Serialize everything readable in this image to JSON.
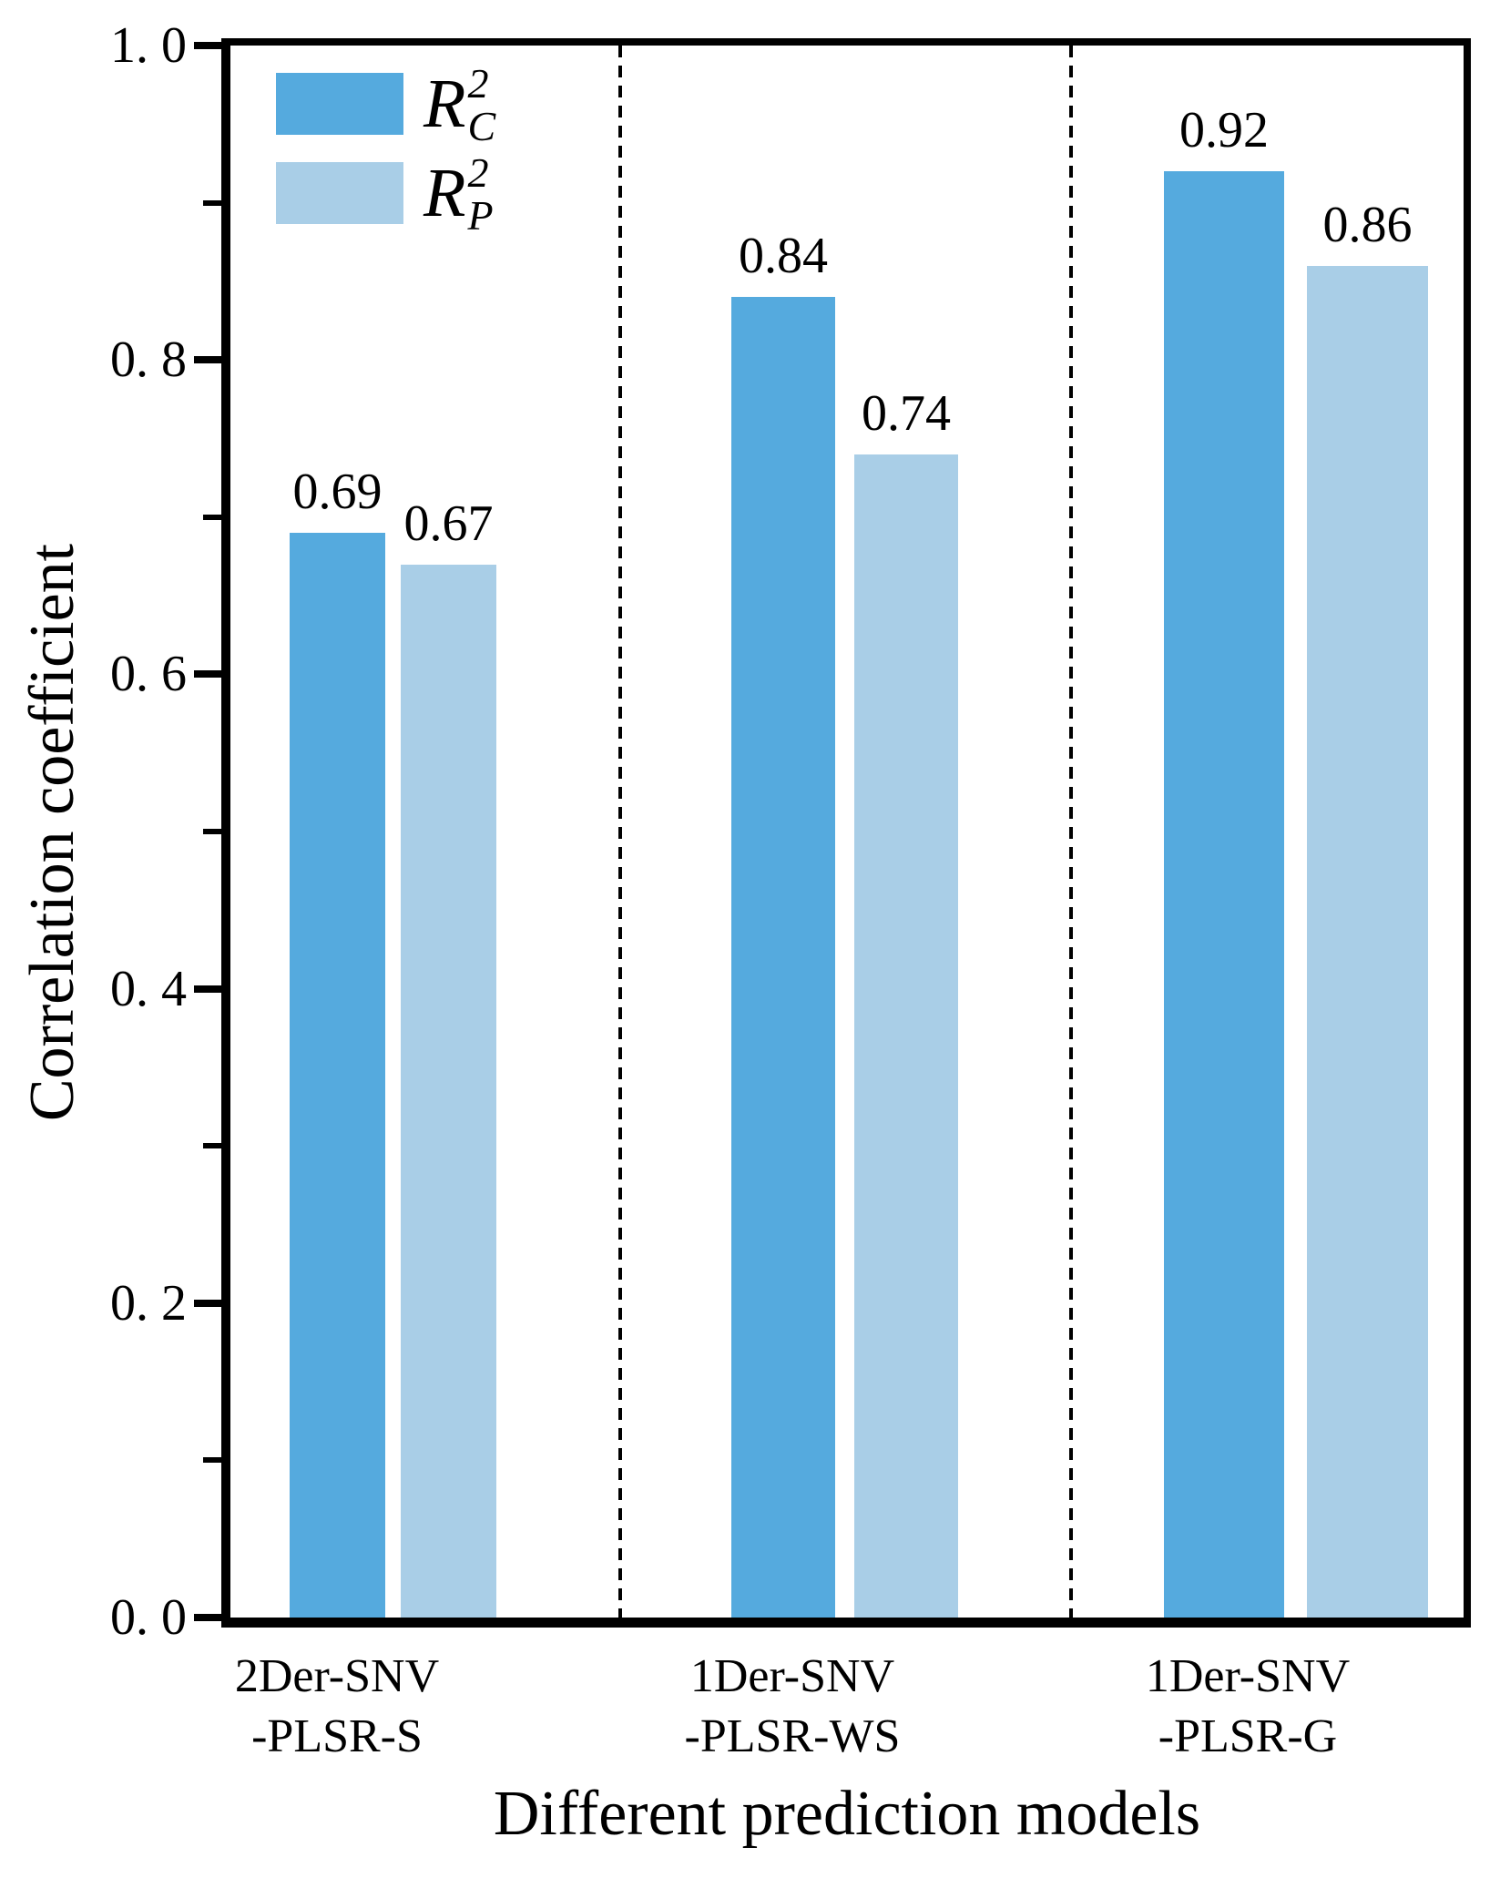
{
  "chart_data": {
    "type": "bar",
    "title": "",
    "xlabel": "Different prediction models",
    "ylabel": "Correlation coefficient",
    "ylim": [
      0.0,
      1.0
    ],
    "grid": false,
    "legend_position": "upper-left",
    "y_major_tick_values": [
      1.0,
      0.8,
      0.6,
      0.4,
      0.2,
      0.0
    ],
    "y_major_tick_labels": [
      "1. 0",
      "0. 8",
      "0. 6",
      "0. 4",
      "0. 2",
      "0. 0"
    ],
    "y_minor_tick_values": [
      0.9,
      0.7,
      0.5,
      0.3,
      0.1
    ],
    "categories": [
      {
        "lines": [
          "2Der-SNV",
          "-PLSR-S"
        ]
      },
      {
        "lines": [
          "1Der-SNV",
          "-PLSR-WS"
        ]
      },
      {
        "lines": [
          "1Der-SNV",
          "-PLSR-G"
        ]
      }
    ],
    "series": [
      {
        "key": "rc",
        "name": "R2C",
        "label": {
          "base": "R",
          "sup": "2",
          "sub": "C"
        },
        "color": "#55AADE",
        "values": [
          0.69,
          0.84,
          0.92
        ]
      },
      {
        "key": "rp",
        "name": "R2P",
        "label": {
          "base": "R",
          "sup": "2",
          "sub": "P"
        },
        "color": "#A9CEE7",
        "values": [
          0.67,
          0.74,
          0.86
        ]
      }
    ],
    "value_labels": [
      [
        "0.69",
        "0.84",
        "0.92"
      ],
      [
        "0.67",
        "0.74",
        "0.86"
      ]
    ],
    "group_separator_style": "dashed-vertical-line"
  },
  "colors": {
    "axis": "#000000",
    "background": "#FFFFFF",
    "rc_bar": "#55AADE",
    "rp_bar": "#A9CEE7"
  }
}
